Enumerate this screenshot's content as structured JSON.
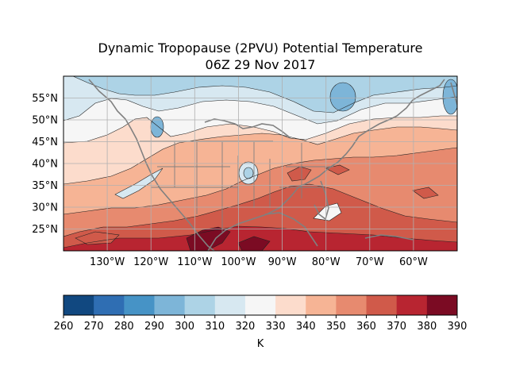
{
  "title": {
    "line1": "Dynamic Tropopause (2PVU) Potential Temperature",
    "line2": "06Z 29 Nov 2017"
  },
  "map": {
    "lon_range": [
      -140,
      -50
    ],
    "lat_range": [
      20,
      60
    ],
    "lon_ticks": [
      "130°W",
      "120°W",
      "110°W",
      "100°W",
      "90°W",
      "80°W",
      "70°W",
      "60°W"
    ],
    "lat_ticks": [
      "55°N",
      "50°N",
      "45°N",
      "40°N",
      "35°N",
      "30°N",
      "25°N"
    ],
    "grid": true,
    "coastline_color": "#808080"
  },
  "colorbar": {
    "levels": [
      260,
      270,
      280,
      290,
      300,
      310,
      320,
      330,
      340,
      350,
      360,
      370,
      380,
      390
    ],
    "tick_labels": [
      "260",
      "270",
      "280",
      "290",
      "300",
      "310",
      "320",
      "330",
      "340",
      "350",
      "360",
      "370",
      "380",
      "390"
    ],
    "colors": [
      "#114880",
      "#2f6eb3",
      "#4693c6",
      "#7db5d8",
      "#add3e6",
      "#d7e8f1",
      "#f6f6f6",
      "#fcdccc",
      "#f6b495",
      "#e78a6f",
      "#d05a4a",
      "#b82531",
      "#7b0b23"
    ],
    "label": "K"
  }
}
